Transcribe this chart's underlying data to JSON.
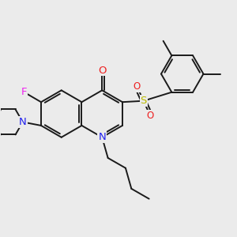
{
  "bg_color": "#ebebeb",
  "bond_color": "#1a1a1a",
  "N_color": "#2020ee",
  "O_color": "#ee2020",
  "F_color": "#ee22ee",
  "S_color": "#bbbb00",
  "bond_lw": 1.4,
  "dbs": 0.09,
  "ais": 0.1,
  "ask": 0.13,
  "fs": 8.5,
  "fig_w": 3.0,
  "fig_h": 3.0,
  "xlim": [
    -2.8,
    7.2
  ],
  "ylim": [
    -3.5,
    5.5
  ]
}
